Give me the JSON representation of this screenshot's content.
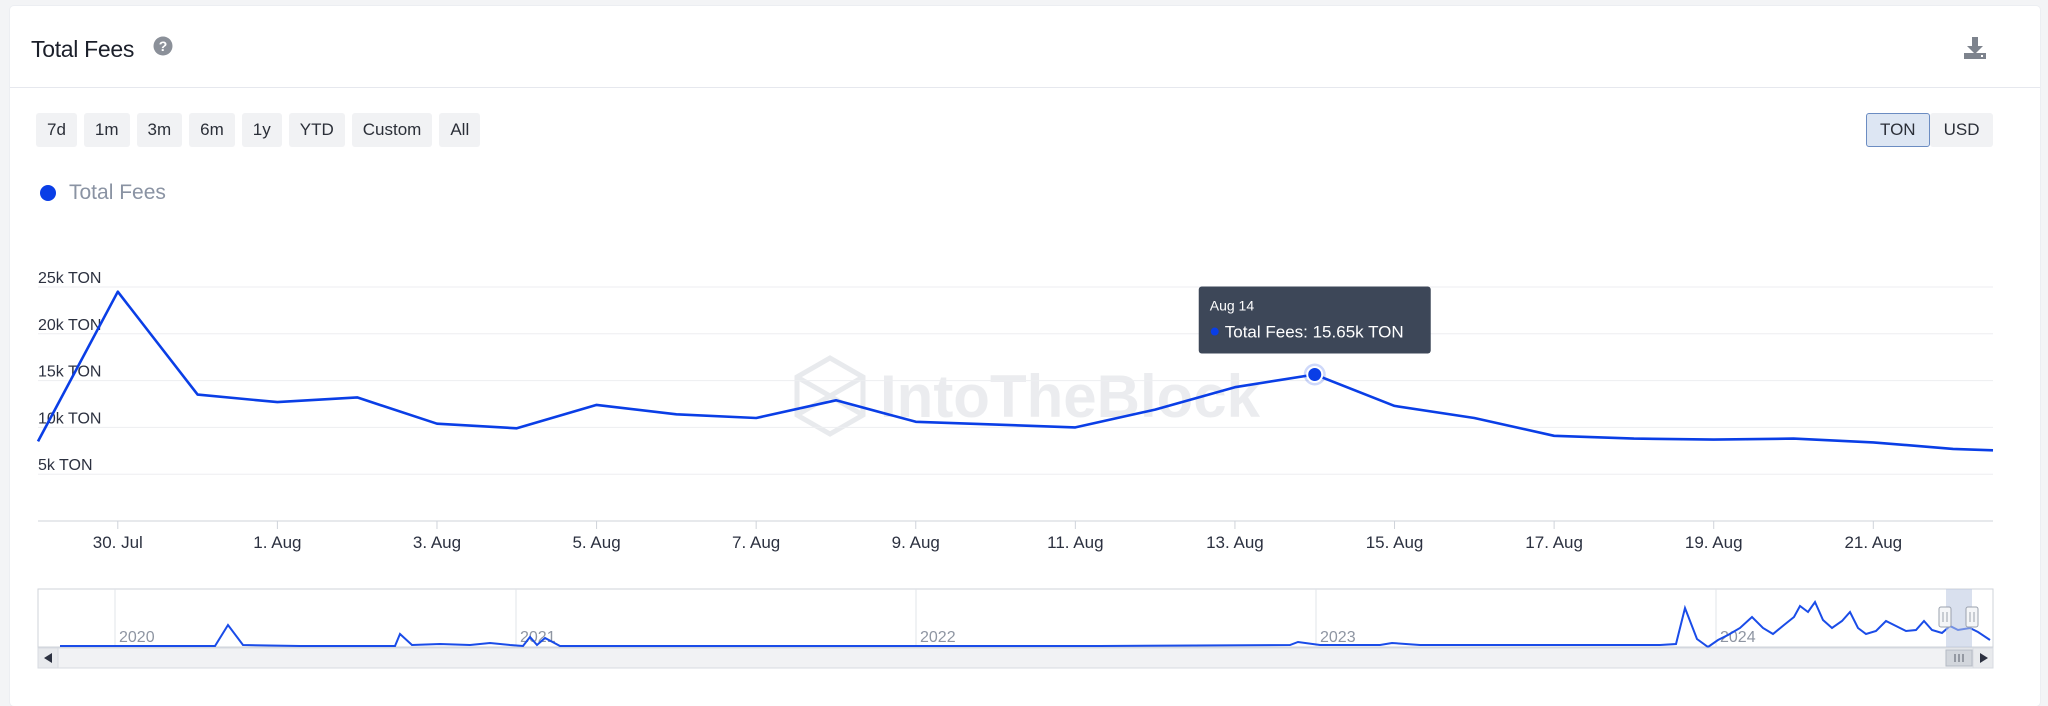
{
  "header": {
    "title": "Total Fees"
  },
  "controls": {
    "ranges": [
      "7d",
      "1m",
      "3m",
      "6m",
      "1y",
      "YTD",
      "Custom",
      "All"
    ],
    "units": [
      "TON",
      "USD"
    ],
    "active_unit": "TON"
  },
  "legend": {
    "label": "Total Fees"
  },
  "watermark": "IntoTheBlock",
  "colors": {
    "series": "#0a3ee6",
    "tooltip_bg": "#3d4758",
    "grid": "#edeef1"
  },
  "icons": {
    "help": "question-circle-icon",
    "download": "download-icon"
  },
  "tooltip": {
    "date": "Aug 14",
    "text": "Total Fees: 15.65k TON"
  },
  "chart_data": {
    "type": "line",
    "title": "Total Fees",
    "xlabel": "",
    "ylabel": "",
    "ylim": [
      0,
      25000
    ],
    "y_ticks": [
      "5k TON",
      "10k TON",
      "15k TON",
      "20k TON",
      "25k TON"
    ],
    "x_ticks": [
      "30. Jul",
      "1. Aug",
      "3. Aug",
      "5. Aug",
      "7. Aug",
      "9. Aug",
      "11. Aug",
      "13. Aug",
      "15. Aug",
      "17. Aug",
      "19. Aug",
      "21. Aug"
    ],
    "grid": true,
    "legend_position": "top-left",
    "series": [
      {
        "name": "Total Fees",
        "color": "#0a3ee6",
        "x": [
          "2024-07-29",
          "2024-07-30",
          "2024-07-31",
          "2024-08-01",
          "2024-08-02",
          "2024-08-03",
          "2024-08-04",
          "2024-08-05",
          "2024-08-06",
          "2024-08-07",
          "2024-08-08",
          "2024-08-09",
          "2024-08-10",
          "2024-08-11",
          "2024-08-12",
          "2024-08-13",
          "2024-08-14",
          "2024-08-15",
          "2024-08-16",
          "2024-08-17",
          "2024-08-18",
          "2024-08-19",
          "2024-08-20",
          "2024-08-21",
          "2024-08-22"
        ],
        "values": [
          8500,
          24500,
          13500,
          12700,
          13200,
          10400,
          9900,
          12400,
          11400,
          11000,
          12900,
          10600,
          10300,
          10000,
          11900,
          14300,
          15650,
          12300,
          11000,
          9100,
          8800,
          8700,
          8800,
          8400,
          7700
        ]
      }
    ],
    "navigator": {
      "year_labels": [
        "2020",
        "2021",
        "2022",
        "2023",
        "2024"
      ]
    }
  }
}
